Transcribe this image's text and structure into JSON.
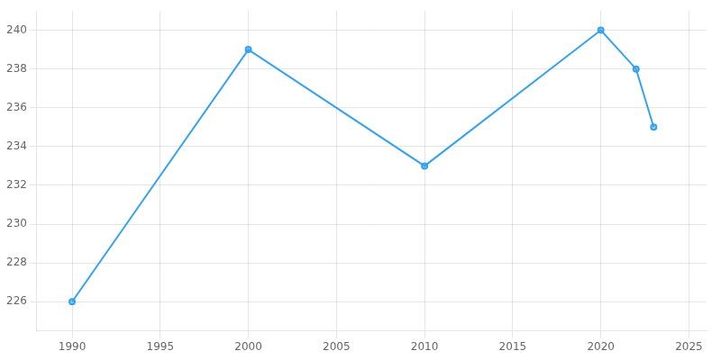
{
  "chart_data": {
    "type": "line",
    "x": [
      1990,
      2000,
      2010,
      2020,
      2022,
      2023
    ],
    "values": [
      226,
      239,
      233,
      240,
      238,
      235
    ],
    "xlim": [
      1988,
      2026
    ],
    "ylim": [
      224.5,
      241
    ],
    "xticks": [
      1990,
      1995,
      2000,
      2005,
      2010,
      2015,
      2020,
      2025
    ],
    "yticks": [
      226,
      228,
      230,
      232,
      234,
      236,
      238,
      240
    ],
    "grid": true,
    "marker": "circle"
  }
}
